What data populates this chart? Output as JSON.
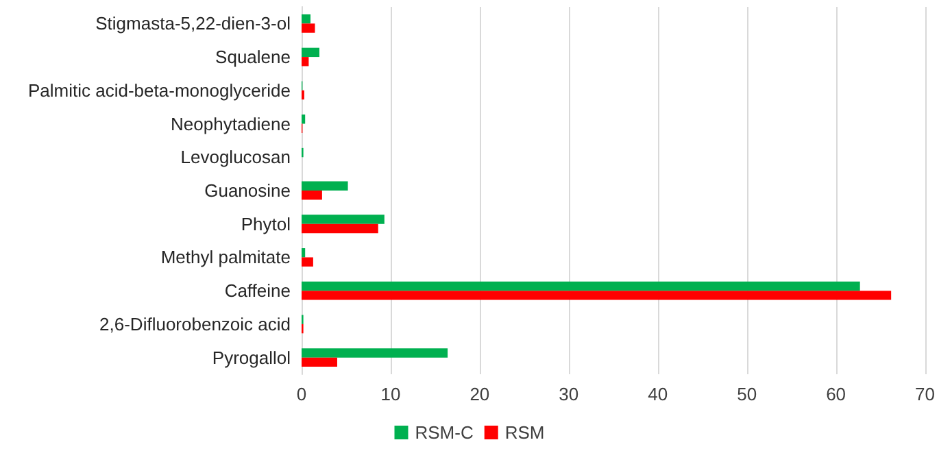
{
  "chart_data": {
    "type": "bar",
    "orientation": "horizontal",
    "categories": [
      "Stigmasta-5,22-dien-3-ol",
      "Squalene",
      "Palmitic acid-beta-monoglyceride",
      "Neophytadiene",
      "Levoglucosan",
      "Guanosine",
      "Phytol",
      "Methyl palmitate",
      "Caffeine",
      "2,6-Difluorobenzoic acid",
      "Pyrogallol"
    ],
    "series": [
      {
        "name": "RSM-C",
        "color": "#00b050",
        "values": [
          1.0,
          2.0,
          0.1,
          0.4,
          0.2,
          5.2,
          9.3,
          0.4,
          62.7,
          0.2,
          16.4
        ]
      },
      {
        "name": "RSM",
        "color": "#ff0000",
        "values": [
          1.5,
          0.8,
          0.3,
          0.1,
          0,
          2.3,
          8.6,
          1.3,
          66.2,
          0.2,
          4.0
        ]
      }
    ],
    "xlim": [
      0,
      70
    ],
    "xticks": [
      0,
      10,
      20,
      30,
      40,
      50,
      60,
      70
    ],
    "grid": "x",
    "legend": "bottom"
  }
}
